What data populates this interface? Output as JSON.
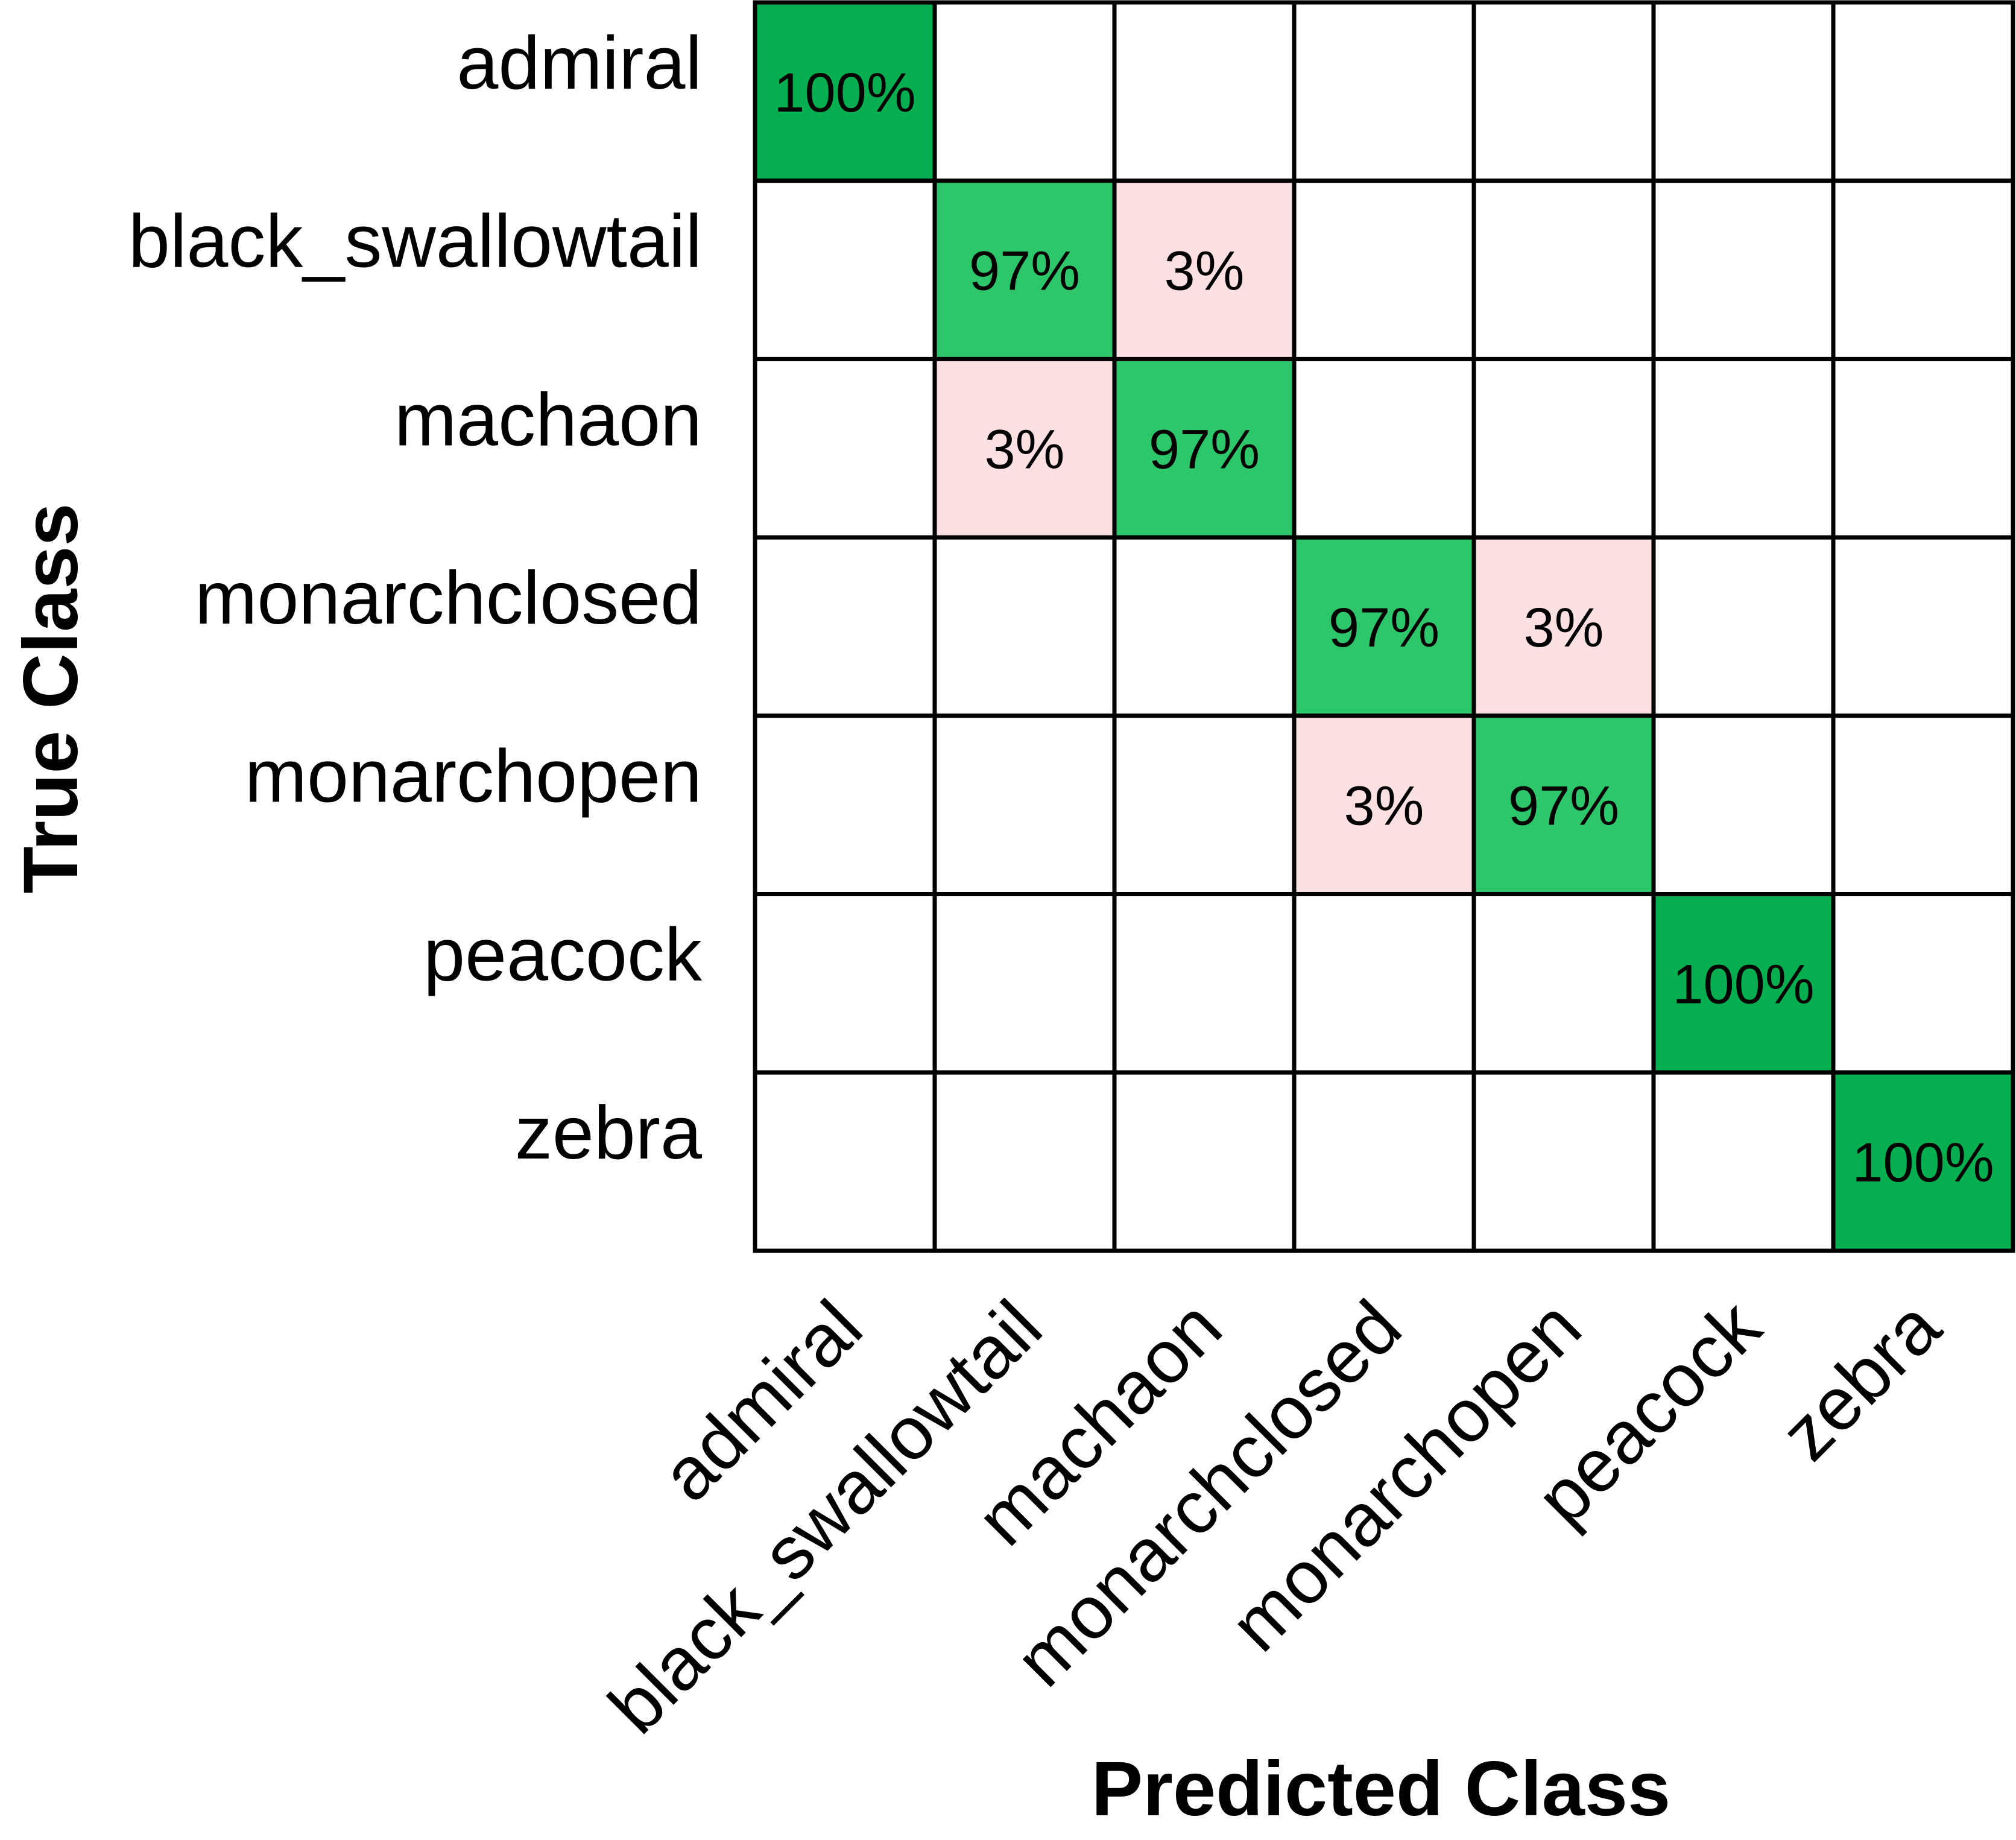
{
  "chart_data": {
    "type": "heatmap",
    "xlabel": "Predicted Class",
    "ylabel": "True Class",
    "row_labels": [
      "admiral",
      "black_swallowtail",
      "machaon",
      "monarchclosed",
      "monarchopen",
      "peacock",
      "zebra"
    ],
    "col_labels": [
      "admiral",
      "black_swallowtail",
      "machaon",
      "monarchclosed",
      "monarchopen",
      "peacock",
      "zebra"
    ],
    "values": [
      [
        100,
        0,
        0,
        0,
        0,
        0,
        0
      ],
      [
        0,
        97,
        3,
        0,
        0,
        0,
        0
      ],
      [
        0,
        3,
        97,
        0,
        0,
        0,
        0
      ],
      [
        0,
        0,
        0,
        97,
        3,
        0,
        0
      ],
      [
        0,
        0,
        0,
        3,
        97,
        0,
        0
      ],
      [
        0,
        0,
        0,
        0,
        0,
        100,
        0
      ],
      [
        0,
        0,
        0,
        0,
        0,
        0,
        100
      ]
    ],
    "cell_labels": [
      [
        "100%",
        "",
        "",
        "",
        "",
        "",
        ""
      ],
      [
        "",
        "97%",
        "3%",
        "",
        "",
        "",
        ""
      ],
      [
        "",
        "3%",
        "97%",
        "",
        "",
        "",
        ""
      ],
      [
        "",
        "",
        "",
        "97%",
        "3%",
        "",
        ""
      ],
      [
        "",
        "",
        "",
        "3%",
        "97%",
        "",
        ""
      ],
      [
        "",
        "",
        "",
        "",
        "",
        "100%",
        ""
      ],
      [
        "",
        "",
        "",
        "",
        "",
        "",
        "100%"
      ]
    ],
    "value_unit": "%",
    "grid": true,
    "colors": {
      "correct_full": "#05af4f",
      "correct_partial": "#2ec66a",
      "error": "#fde0e2",
      "empty": "#ffffff",
      "grid_line": "#000000"
    }
  }
}
